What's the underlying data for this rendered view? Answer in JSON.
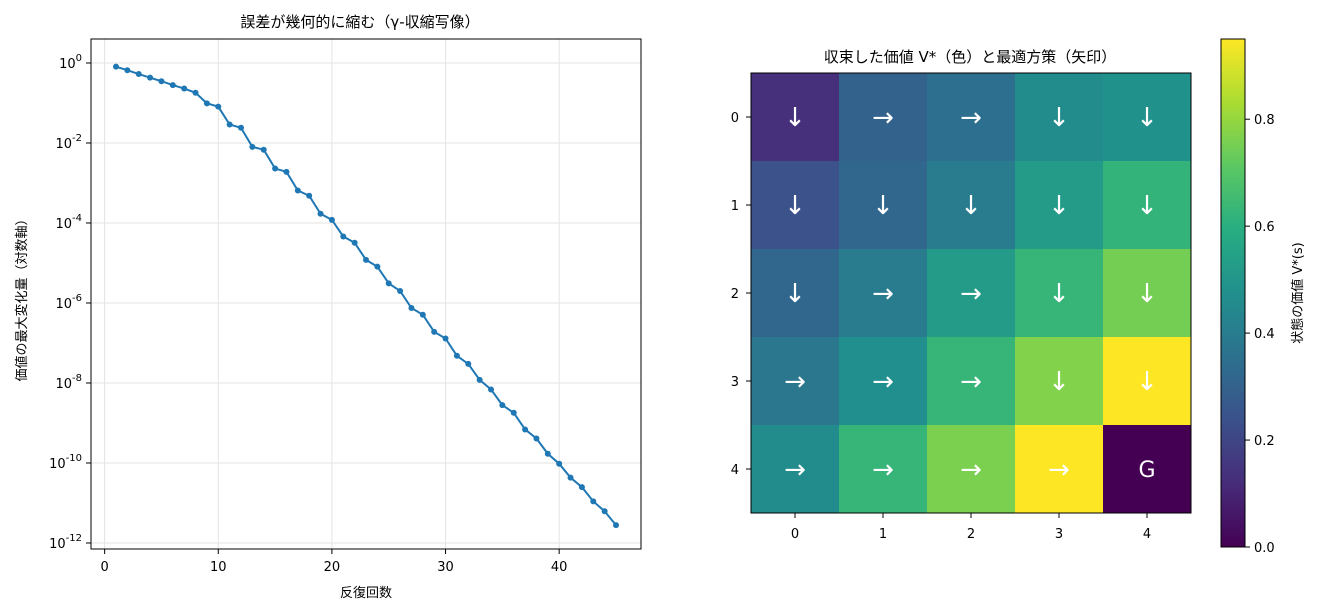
{
  "chart_data": [
    {
      "type": "line",
      "title": "誤差が幾何的に縮む（γ-収縮写像）",
      "xlabel": "反復回数",
      "ylabel": "価値の最大変化量（対数軸）",
      "yscale": "log",
      "xlim": [
        -1.2,
        47.2
      ],
      "ylim_log10": [
        -12.15,
        0.6
      ],
      "grid": true,
      "x_ticks": [
        0,
        10,
        20,
        30,
        40
      ],
      "x_tick_labels": [
        "0",
        "10",
        "20",
        "30",
        "40"
      ],
      "y_ticks_log10": [
        0,
        -2,
        -4,
        -6,
        -8,
        -10,
        -12
      ],
      "y_tick_labels": [
        "10",
        "10",
        "10",
        "10",
        "10",
        "10",
        "10"
      ],
      "y_tick_exponents": [
        "0",
        "-2",
        "-4",
        "-6",
        "-8",
        "-10",
        "-12"
      ],
      "series": [
        {
          "color": "#1f77b4",
          "x": [
            1,
            2,
            3,
            4,
            5,
            6,
            7,
            8,
            9,
            10,
            11,
            12,
            13,
            14,
            15,
            16,
            17,
            18,
            19,
            20,
            21,
            22,
            23,
            24,
            25,
            26,
            27,
            28,
            29,
            30,
            31,
            32,
            33,
            34,
            35,
            36,
            37,
            38,
            39,
            40,
            41,
            42,
            43,
            44,
            45
          ],
          "y": [
            0.81,
            0.66,
            0.53,
            0.43,
            0.35,
            0.28,
            0.23,
            0.18,
            0.098,
            0.081,
            0.029,
            0.024,
            0.008,
            0.0068,
            0.0023,
            0.0019,
            0.00065,
            0.00048,
            0.00017,
            0.00012,
            4.6e-05,
            3.2e-05,
            1.2e-05,
            8.1e-06,
            3.1e-06,
            2e-06,
            7.5e-07,
            5.1e-07,
            1.9e-07,
            1.3e-07,
            4.8e-08,
            3e-08,
            1.2e-08,
            6.9e-09,
            2.8e-09,
            1.8e-09,
            6.9e-10,
            4.1e-10,
            1.7e-10,
            9.6e-11,
            4.3e-11,
            2.5e-11,
            1.1e-11,
            6.2e-12,
            2.8e-12
          ]
        }
      ]
    },
    {
      "type": "heatmap",
      "title": "収束した価値 V*（色）と最適方策（矢印）",
      "rows": [
        "0",
        "1",
        "2",
        "3",
        "4"
      ],
      "cols": [
        "0",
        "1",
        "2",
        "3",
        "4"
      ],
      "values": [
        [
          0.13,
          0.3,
          0.35,
          0.46,
          0.48
        ],
        [
          0.24,
          0.32,
          0.4,
          0.52,
          0.62
        ],
        [
          0.32,
          0.4,
          0.52,
          0.63,
          0.75
        ],
        [
          0.38,
          0.47,
          0.63,
          0.77,
          0.95
        ],
        [
          0.46,
          0.63,
          0.76,
          0.95,
          0.0
        ]
      ],
      "arrows": [
        [
          "↓",
          "→",
          "→",
          "↓",
          "↓"
        ],
        [
          "↓",
          "↓",
          "↓",
          "↓",
          "↓"
        ],
        [
          "↓",
          "→",
          "→",
          "↓",
          "↓"
        ],
        [
          "→",
          "→",
          "→",
          "↓",
          "↓"
        ],
        [
          "→",
          "→",
          "→",
          "→",
          "G"
        ]
      ],
      "colormap": "viridis",
      "vmin": 0.0,
      "vmax": 0.95,
      "colorbar": {
        "label": "状態の価値 V*(s)",
        "ticks": [
          0.0,
          0.2,
          0.4,
          0.6,
          0.8
        ],
        "tick_labels": [
          "0.0",
          "0.2",
          "0.4",
          "0.6",
          "0.8"
        ]
      }
    }
  ]
}
